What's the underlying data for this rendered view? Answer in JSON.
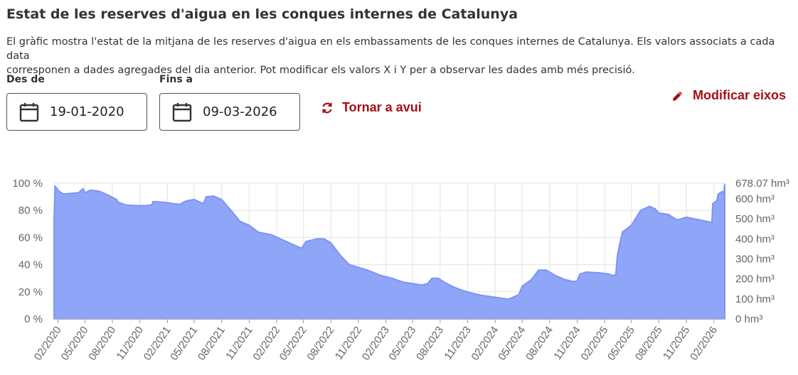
{
  "header": {
    "title": "Estat de les reserves d'aigua en les conques internes de Catalunya",
    "description_line1": "El gràfic mostra l'estat de la mitjana de les reserves d'aigua en els embassaments de les conques internes de Catalunya. Els valors associats a cada data",
    "description_line2": "corresponen a dades agregades del dia anterior. Pot modificar els valors X i Y per a observar les dades amb més precisió."
  },
  "controls": {
    "from_label": "Des de",
    "from_value": "19-01-2020",
    "to_label": "Fins a",
    "to_value": "09-03-2026",
    "reset_label": "Tornar a avui",
    "modify_axes_label": "Modificar eixos",
    "accent_color": "#a70e16",
    "icons": [
      "calendar-icon",
      "refresh-icon",
      "pencil-icon"
    ]
  },
  "chart_data": {
    "type": "area",
    "fill_color": "#8fa5f7",
    "stroke_color": "#7c95f5",
    "grid": true,
    "xlim": [
      "2020-01-19",
      "2026-03-09"
    ],
    "ylim": [
      0,
      100
    ],
    "y_left_ticks": [
      "0 %",
      "20 %",
      "40 %",
      "60 %",
      "80 %",
      "100 %"
    ],
    "y_right_ticks": [
      "0  hm³",
      "100  hm³",
      "200  hm³",
      "300  hm³",
      "400  hm³",
      "500  hm³",
      "600  hm³",
      "678.07  hm³"
    ],
    "y_right_values": [
      0,
      100,
      200,
      300,
      400,
      500,
      600,
      678.07
    ],
    "x_ticks": [
      "02/2020",
      "05/2020",
      "08/2020",
      "11/2020",
      "02/2021",
      "05/2021",
      "08/2021",
      "11/2021",
      "02/2022",
      "05/2022",
      "08/2022",
      "11/2022",
      "02/2023",
      "05/2023",
      "08/2023",
      "11/2023",
      "02/2024",
      "05/2024",
      "08/2024",
      "11/2024",
      "02/2025",
      "05/2025",
      "08/2025",
      "11/2025",
      "02/2026"
    ],
    "series": [
      {
        "points": [
          [
            "2020-01-19",
            72
          ],
          [
            "2020-01-22",
            98
          ],
          [
            "2020-02-05",
            94
          ],
          [
            "2020-02-20",
            92
          ],
          [
            "2020-03-15",
            92.5
          ],
          [
            "2020-04-10",
            93
          ],
          [
            "2020-04-25",
            96
          ],
          [
            "2020-05-01",
            93
          ],
          [
            "2020-05-20",
            95
          ],
          [
            "2020-06-20",
            94
          ],
          [
            "2020-07-20",
            91
          ],
          [
            "2020-08-15",
            88
          ],
          [
            "2020-08-20",
            86
          ],
          [
            "2020-09-15",
            84
          ],
          [
            "2020-10-20",
            83.5
          ],
          [
            "2020-11-20",
            83.5
          ],
          [
            "2020-12-10",
            84
          ],
          [
            "2020-12-15",
            86.5
          ],
          [
            "2021-01-20",
            86
          ],
          [
            "2021-02-20",
            85
          ],
          [
            "2021-03-15",
            84.5
          ],
          [
            "2021-04-05",
            87
          ],
          [
            "2021-05-01",
            88
          ],
          [
            "2021-06-01",
            85
          ],
          [
            "2021-06-10",
            90
          ],
          [
            "2021-07-05",
            90.5
          ],
          [
            "2021-08-01",
            88
          ],
          [
            "2021-09-01",
            80
          ],
          [
            "2021-10-01",
            72
          ],
          [
            "2021-11-01",
            69
          ],
          [
            "2021-12-01",
            64
          ],
          [
            "2022-01-15",
            62
          ],
          [
            "2022-03-15",
            56
          ],
          [
            "2022-04-25",
            52
          ],
          [
            "2022-05-10",
            57
          ],
          [
            "2022-06-15",
            59
          ],
          [
            "2022-07-10",
            59
          ],
          [
            "2022-08-01",
            56
          ],
          [
            "2022-09-01",
            47
          ],
          [
            "2022-10-01",
            40
          ],
          [
            "2022-11-01",
            38
          ],
          [
            "2022-12-01",
            36
          ],
          [
            "2023-01-15",
            32
          ],
          [
            "2023-02-20",
            30
          ],
          [
            "2023-04-01",
            27
          ],
          [
            "2023-05-01",
            26
          ],
          [
            "2023-06-01",
            25
          ],
          [
            "2023-06-20",
            26
          ],
          [
            "2023-07-05",
            30
          ],
          [
            "2023-07-25",
            30
          ],
          [
            "2023-08-15",
            27
          ],
          [
            "2023-09-15",
            23.5
          ],
          [
            "2023-10-15",
            21
          ],
          [
            "2023-11-15",
            19
          ],
          [
            "2023-12-15",
            17.5
          ],
          [
            "2024-01-15",
            16.5
          ],
          [
            "2024-02-15",
            15.5
          ],
          [
            "2024-03-15",
            14.5
          ],
          [
            "2024-04-01",
            16
          ],
          [
            "2024-04-20",
            18
          ],
          [
            "2024-05-01",
            24
          ],
          [
            "2024-06-01",
            29
          ],
          [
            "2024-06-25",
            36
          ],
          [
            "2024-07-20",
            36
          ],
          [
            "2024-08-20",
            32
          ],
          [
            "2024-09-20",
            29
          ],
          [
            "2024-10-20",
            27.5
          ],
          [
            "2024-11-01",
            28
          ],
          [
            "2024-11-10",
            33
          ],
          [
            "2024-12-01",
            34.5
          ],
          [
            "2025-01-15",
            34
          ],
          [
            "2025-02-15",
            33
          ],
          [
            "2025-03-01",
            32
          ],
          [
            "2025-03-10",
            32.5
          ],
          [
            "2025-03-15",
            46
          ],
          [
            "2025-03-20",
            52
          ],
          [
            "2025-04-01",
            64
          ],
          [
            "2025-05-01",
            69
          ],
          [
            "2025-06-01",
            80
          ],
          [
            "2025-07-01",
            83
          ],
          [
            "2025-07-20",
            81
          ],
          [
            "2025-08-01",
            78
          ],
          [
            "2025-09-01",
            77
          ],
          [
            "2025-10-01",
            73
          ],
          [
            "2025-11-01",
            75
          ],
          [
            "2025-12-15",
            73
          ],
          [
            "2026-01-15",
            71.5
          ],
          [
            "2026-01-25",
            71
          ],
          [
            "2026-01-28",
            85
          ],
          [
            "2026-02-10",
            87
          ],
          [
            "2026-02-15",
            92
          ],
          [
            "2026-03-01",
            94
          ],
          [
            "2026-03-06",
            92
          ],
          [
            "2026-03-08",
            98
          ],
          [
            "2026-03-09",
            99
          ]
        ]
      }
    ]
  }
}
